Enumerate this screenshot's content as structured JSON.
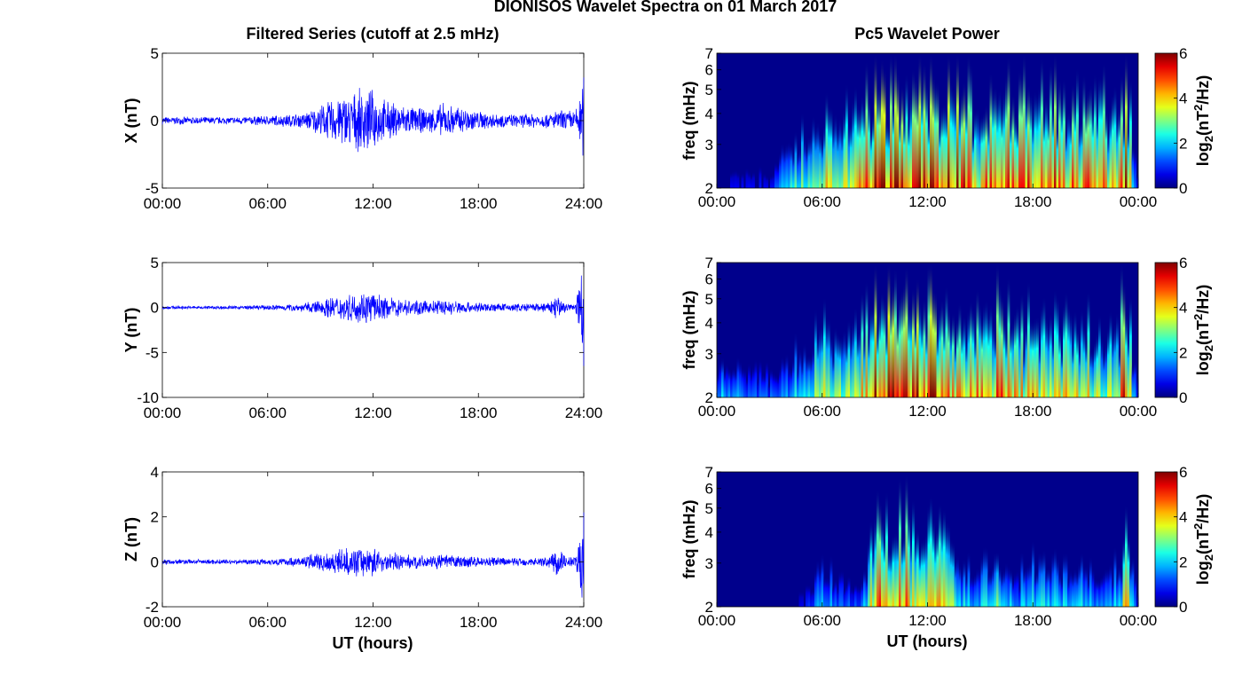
{
  "figure": {
    "title": "DIONISOS Wavelet Spectra on 01 March 2017",
    "left_column_title": "Filtered Series (cutoff at 2.5 mHz)",
    "right_column_title": "Pc5 Wavelet Power",
    "xlabel": "UT (hours)"
  },
  "chart_data": [
    {
      "type": "line",
      "name": "x-series",
      "ylabel": "X (nT)",
      "ylim": [
        -5,
        5
      ],
      "yticks": [
        "5",
        "0",
        "-5"
      ],
      "xticks": [
        "00:00",
        "06:00",
        "12:00",
        "18:00",
        "24:00"
      ],
      "xlim_hours": [
        0,
        24
      ],
      "line_color": "#0000ff",
      "envelope": {
        "hours": [
          0,
          2,
          4,
          6,
          8,
          9,
          10,
          11,
          11.5,
          12,
          12.5,
          13,
          14,
          15,
          16,
          17,
          18,
          19,
          20,
          21,
          22,
          22.5,
          23,
          23.5,
          24
        ],
        "amplitude_nT": [
          0.3,
          0.3,
          0.3,
          0.4,
          0.6,
          1.2,
          2.0,
          2.3,
          2.6,
          2.4,
          1.8,
          1.5,
          1.2,
          0.9,
          1.4,
          1.1,
          0.8,
          0.6,
          0.5,
          0.6,
          0.6,
          0.8,
          0.9,
          0.8,
          3.2
        ]
      }
    },
    {
      "type": "line",
      "name": "y-series",
      "ylabel": "Y (nT)",
      "ylim": [
        -10,
        5
      ],
      "yticks": [
        "5",
        "0",
        "-5",
        "-10"
      ],
      "xticks": [
        "00:00",
        "06:00",
        "12:00",
        "18:00",
        "24:00"
      ],
      "xlim_hours": [
        0,
        24
      ],
      "line_color": "#0000ff",
      "envelope": {
        "hours": [
          0,
          2,
          4,
          6,
          8,
          9,
          10,
          11,
          11.5,
          12,
          12.5,
          13,
          14,
          15,
          16,
          17,
          18,
          19,
          20,
          21,
          22,
          22.5,
          23,
          23.5,
          24
        ],
        "amplitude_nT": [
          0.2,
          0.2,
          0.2,
          0.3,
          0.5,
          1.0,
          1.5,
          1.7,
          2.0,
          1.8,
          1.4,
          1.2,
          1.0,
          0.8,
          1.0,
          0.8,
          0.6,
          0.5,
          0.5,
          0.5,
          0.6,
          1.6,
          0.6,
          0.5,
          6.5
        ]
      }
    },
    {
      "type": "line",
      "name": "z-series",
      "ylabel": "Z (nT)",
      "ylim": [
        -2,
        4
      ],
      "yticks": [
        "4",
        "2",
        "0",
        "-2"
      ],
      "xticks": [
        "00:00",
        "06:00",
        "12:00",
        "18:00",
        "24:00"
      ],
      "xlim_hours": [
        0,
        24
      ],
      "line_color": "#0000ff",
      "envelope": {
        "hours": [
          0,
          2,
          4,
          6,
          8,
          9,
          10,
          11,
          11.5,
          12,
          12.5,
          13,
          14,
          15,
          16,
          17,
          18,
          19,
          20,
          21,
          22,
          22.5,
          23,
          23.5,
          24
        ],
        "amplitude_nT": [
          0.12,
          0.12,
          0.12,
          0.15,
          0.25,
          0.5,
          0.6,
          0.65,
          0.75,
          0.7,
          0.5,
          0.45,
          0.35,
          0.3,
          0.35,
          0.3,
          0.25,
          0.22,
          0.2,
          0.2,
          0.25,
          0.8,
          0.3,
          0.25,
          2.2
        ]
      }
    },
    {
      "type": "heatmap",
      "name": "x-power",
      "ylabel": "freq (mHz)",
      "yscale": "log",
      "ylim": [
        2,
        7
      ],
      "yticks": [
        "7",
        "6",
        "5",
        "4",
        "3",
        "2"
      ],
      "xticks": [
        "00:00",
        "06:00",
        "12:00",
        "18:00",
        "00:00"
      ],
      "xlim_hours": [
        0,
        24
      ],
      "colorbar": {
        "label": "log2(nT^2/Hz)",
        "ticks": [
          "6",
          "4",
          "2",
          "0"
        ],
        "range": [
          0,
          6
        ],
        "colormap": "jet"
      },
      "activity_profile": {
        "hours": [
          0,
          1,
          2,
          3,
          4,
          5,
          6,
          7,
          8,
          8.5,
          9,
          10,
          11,
          12,
          13,
          14,
          15,
          16,
          17,
          18,
          19,
          20,
          21,
          22,
          23,
          23.3,
          24
        ],
        "peak_log2_power": [
          0.5,
          0.8,
          1.0,
          0.8,
          2.5,
          3.5,
          4.5,
          4.0,
          4.5,
          5.5,
          6.5,
          6.5,
          6.5,
          6.5,
          6.5,
          6.0,
          5.0,
          6.0,
          5.5,
          5.5,
          6.0,
          5.5,
          5.5,
          5.0,
          5.5,
          6.5,
          0.5
        ]
      }
    },
    {
      "type": "heatmap",
      "name": "y-power",
      "ylabel": "freq (mHz)",
      "yscale": "log",
      "ylim": [
        2,
        7
      ],
      "yticks": [
        "7",
        "6",
        "5",
        "4",
        "3",
        "2"
      ],
      "xticks": [
        "00:00",
        "06:00",
        "12:00",
        "18:00",
        "00:00"
      ],
      "xlim_hours": [
        0,
        24
      ],
      "colorbar": {
        "label": "log2(nT^2/Hz)",
        "ticks": [
          "6",
          "4",
          "2",
          "0"
        ],
        "range": [
          0,
          6
        ],
        "colormap": "jet"
      },
      "activity_profile": {
        "hours": [
          0,
          1,
          2,
          3,
          4,
          5,
          6,
          7,
          8,
          8.5,
          9,
          10,
          11,
          12,
          13,
          14,
          15,
          16,
          17,
          18,
          19,
          20,
          21,
          22,
          23,
          23.3,
          24
        ],
        "peak_log2_power": [
          2.5,
          2.0,
          1.5,
          1.5,
          2.0,
          3.0,
          4.0,
          4.0,
          4.5,
          5.0,
          6.5,
          6.5,
          6.5,
          6.5,
          6.0,
          5.5,
          5.0,
          5.5,
          5.0,
          4.5,
          5.0,
          4.5,
          4.5,
          4.0,
          5.0,
          6.5,
          0.5
        ]
      }
    },
    {
      "type": "heatmap",
      "name": "z-power",
      "ylabel": "freq (mHz)",
      "yscale": "log",
      "ylim": [
        2,
        7
      ],
      "yticks": [
        "7",
        "6",
        "5",
        "4",
        "3",
        "2"
      ],
      "xticks": [
        "00:00",
        "06:00",
        "12:00",
        "18:00",
        "00:00"
      ],
      "xlim_hours": [
        0,
        24
      ],
      "colorbar": {
        "label": "log2(nT^2/Hz)",
        "ticks": [
          "6",
          "4",
          "2",
          "0"
        ],
        "range": [
          0,
          6
        ],
        "colormap": "jet"
      },
      "activity_profile": {
        "hours": [
          0,
          1,
          2,
          3,
          4,
          5,
          6,
          7,
          8,
          8.5,
          9,
          10,
          11,
          12,
          13,
          14,
          15,
          16,
          17,
          18,
          19,
          20,
          21,
          22,
          23,
          23.3,
          24
        ],
        "peak_log2_power": [
          0.3,
          0.3,
          0.3,
          0.3,
          0.5,
          0.8,
          2.5,
          1.5,
          1.5,
          2.5,
          5.5,
          5.5,
          5.0,
          5.5,
          4.5,
          2.5,
          2.5,
          3.5,
          2.0,
          3.0,
          2.5,
          2.5,
          2.5,
          2.0,
          2.5,
          5.5,
          0.3
        ]
      }
    }
  ]
}
